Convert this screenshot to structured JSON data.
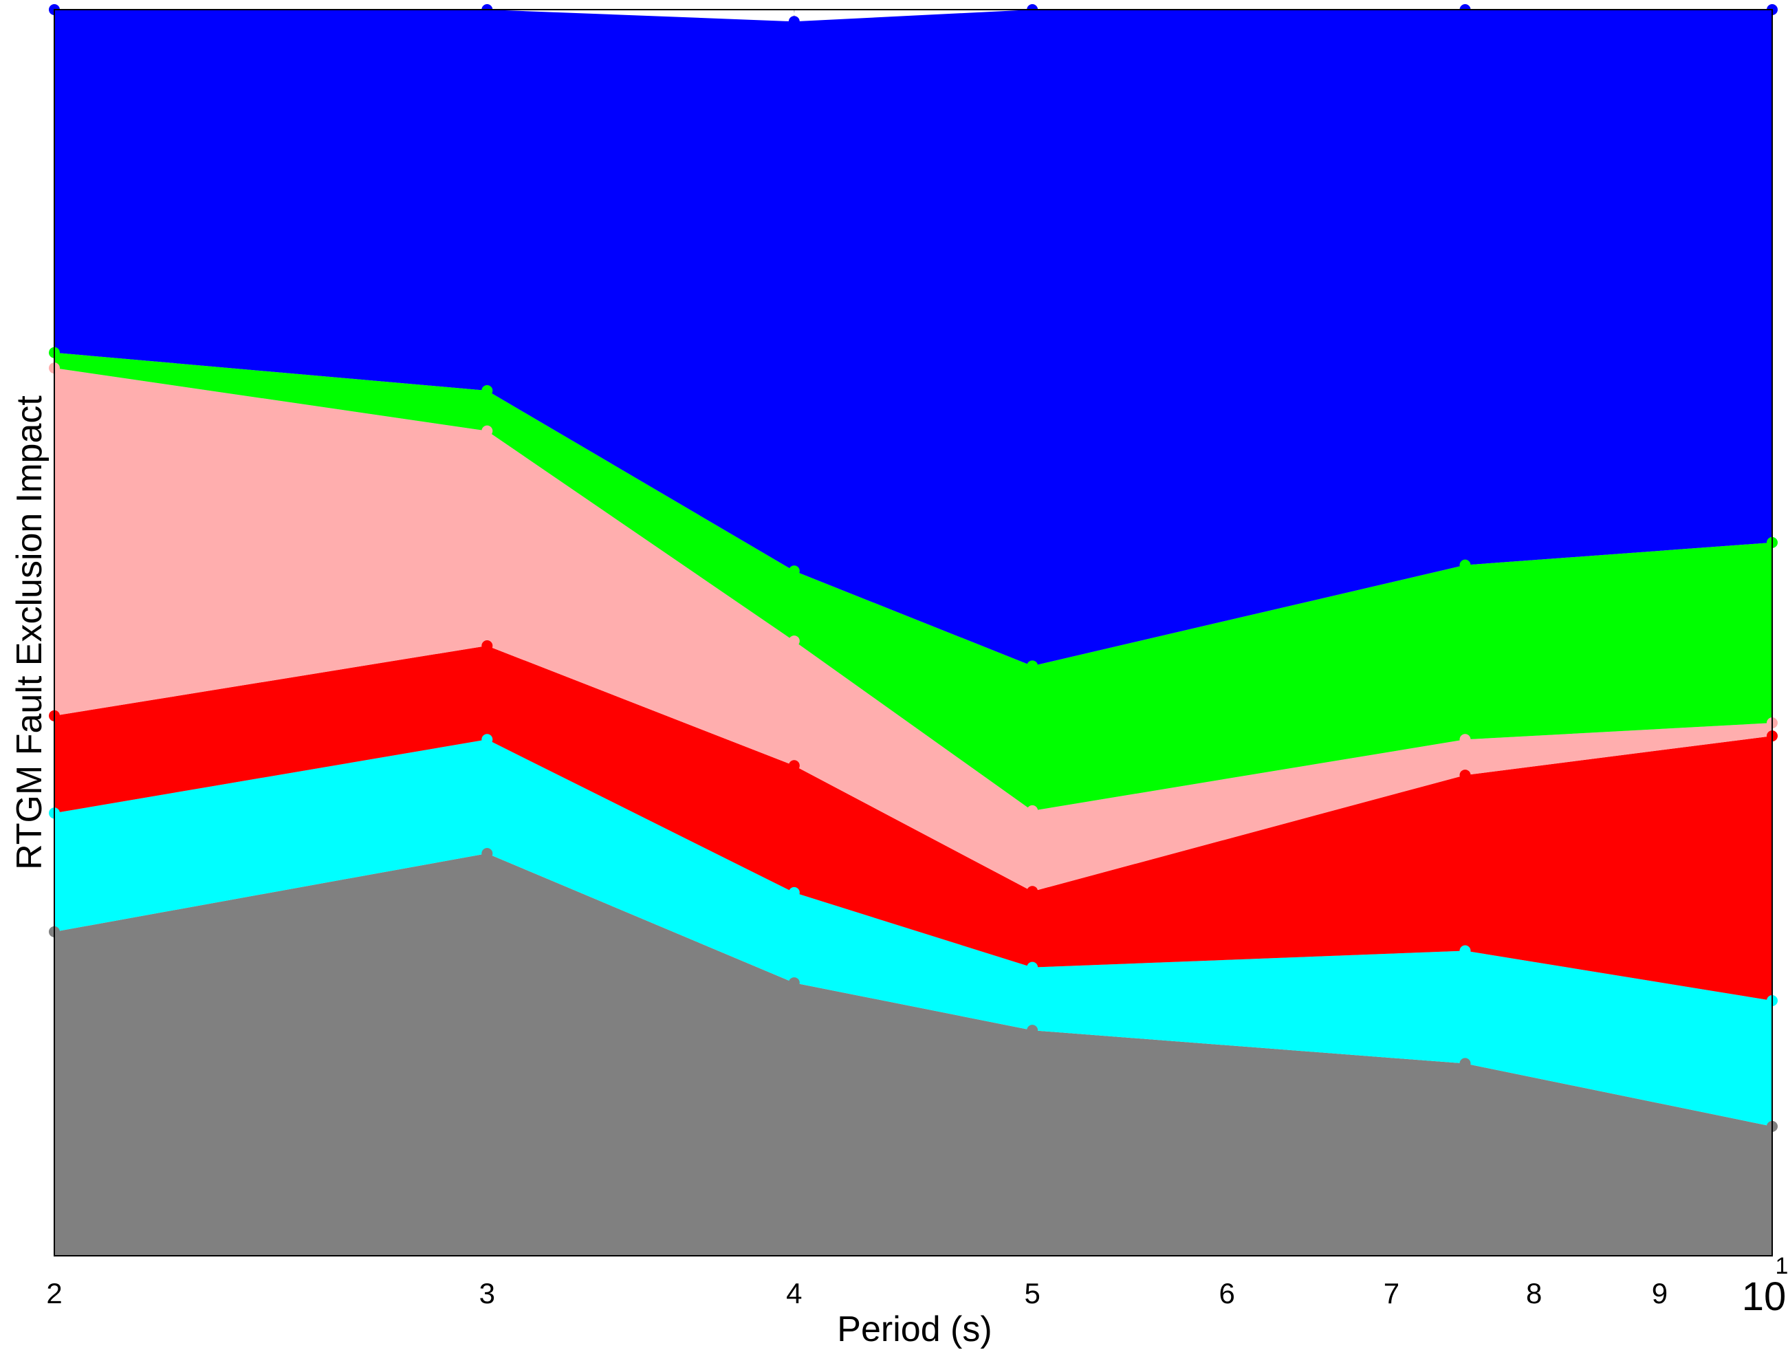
{
  "chart_data": {
    "type": "area",
    "stacked": true,
    "title": "",
    "xlabel": "Period (s)",
    "ylabel": "RTGM Fault Exclusion Impact",
    "x_scale": "log",
    "xlim": [
      2,
      10
    ],
    "ylim": [
      0,
      1.05
    ],
    "grid": {
      "x": true,
      "y": false,
      "style": "dotted",
      "color": "#c8c8c8"
    },
    "legend": "none",
    "x": [
      2,
      3,
      4,
      5,
      7.5,
      10
    ],
    "x_ticks": [
      2,
      3,
      4,
      5,
      6,
      7,
      8,
      9,
      10
    ],
    "x_tick_labels": [
      "2",
      "3",
      "4",
      "5",
      "6",
      "7",
      "8",
      "9",
      "10"
    ],
    "x_tick_exponent_label": "1",
    "series": [
      {
        "color": "#808080",
        "values": [
          0.273,
          0.339,
          0.23,
          0.19,
          0.162,
          0.109
        ]
      },
      {
        "color": "#00ffff",
        "values": [
          0.1,
          0.096,
          0.076,
          0.053,
          0.095,
          0.106
        ]
      },
      {
        "color": "#ff0000",
        "values": [
          0.082,
          0.079,
          0.107,
          0.064,
          0.148,
          0.223
        ]
      },
      {
        "color": "#ffaeae",
        "values": [
          0.293,
          0.181,
          0.105,
          0.068,
          0.03,
          0.011
        ]
      },
      {
        "color": "#00ff00",
        "values": [
          0.013,
          0.034,
          0.059,
          0.122,
          0.147,
          0.152
        ]
      },
      {
        "color": "#0000ff",
        "values": [
          0.289,
          0.321,
          0.463,
          0.553,
          0.468,
          0.449
        ]
      }
    ]
  }
}
